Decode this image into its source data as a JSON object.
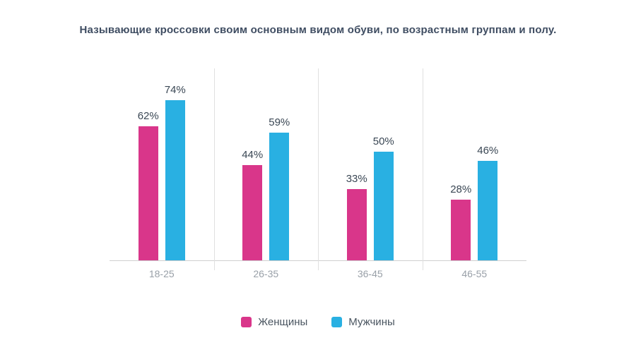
{
  "title": "Называющие кроссовки своим основным видом обуви, по возрастным группам и полу.",
  "chart_data": {
    "type": "bar",
    "categories": [
      "18-25",
      "26-35",
      "36-45",
      "46-55"
    ],
    "series": [
      {
        "name": "Женщины",
        "color": "#d9368a",
        "values": [
          62,
          44,
          33,
          28
        ]
      },
      {
        "name": "Мужчины",
        "color": "#29b0e2",
        "values": [
          74,
          59,
          50,
          46
        ]
      }
    ],
    "value_suffix": "%",
    "ylim": [
      0,
      80
    ],
    "grid": "off",
    "legend_position": "bottom",
    "xlabel": "",
    "ylabel": ""
  }
}
